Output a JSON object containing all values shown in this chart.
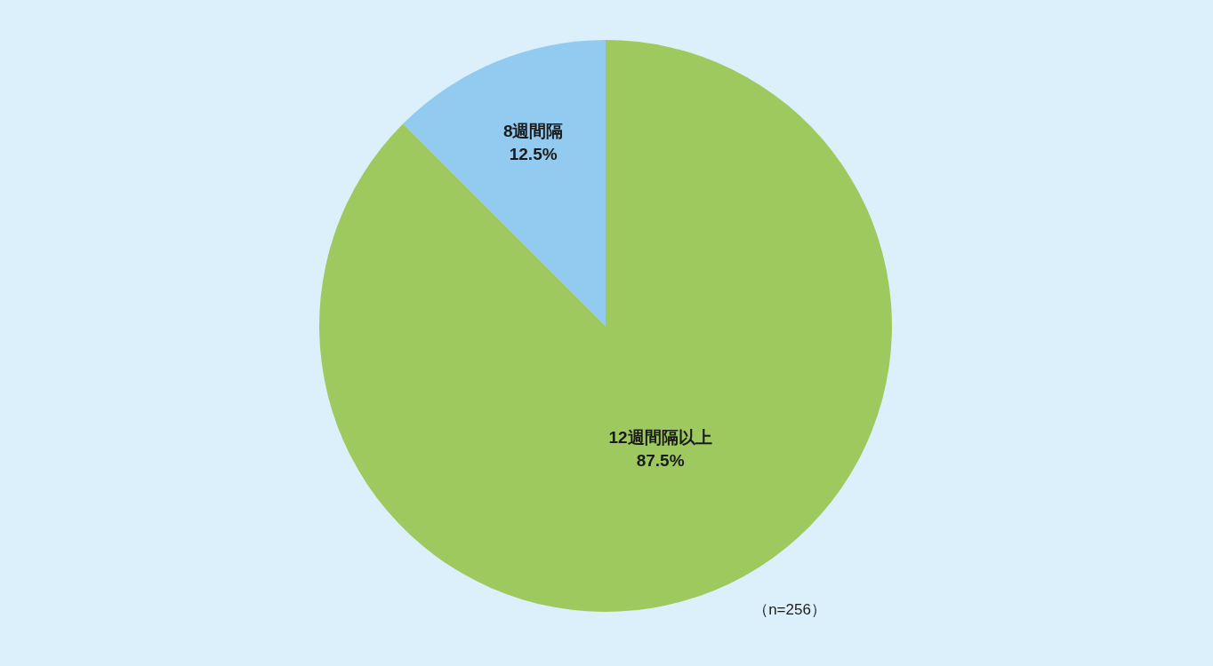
{
  "chart_data": {
    "type": "pie",
    "categories": [
      "12週間隔以上",
      "8週間隔"
    ],
    "values": [
      87.5,
      12.5
    ],
    "colors": [
      "#9ec95f",
      "#92cbef"
    ],
    "value_labels": [
      "87.5%",
      "12.5%"
    ],
    "annotations": [
      "（n=256）"
    ]
  }
}
